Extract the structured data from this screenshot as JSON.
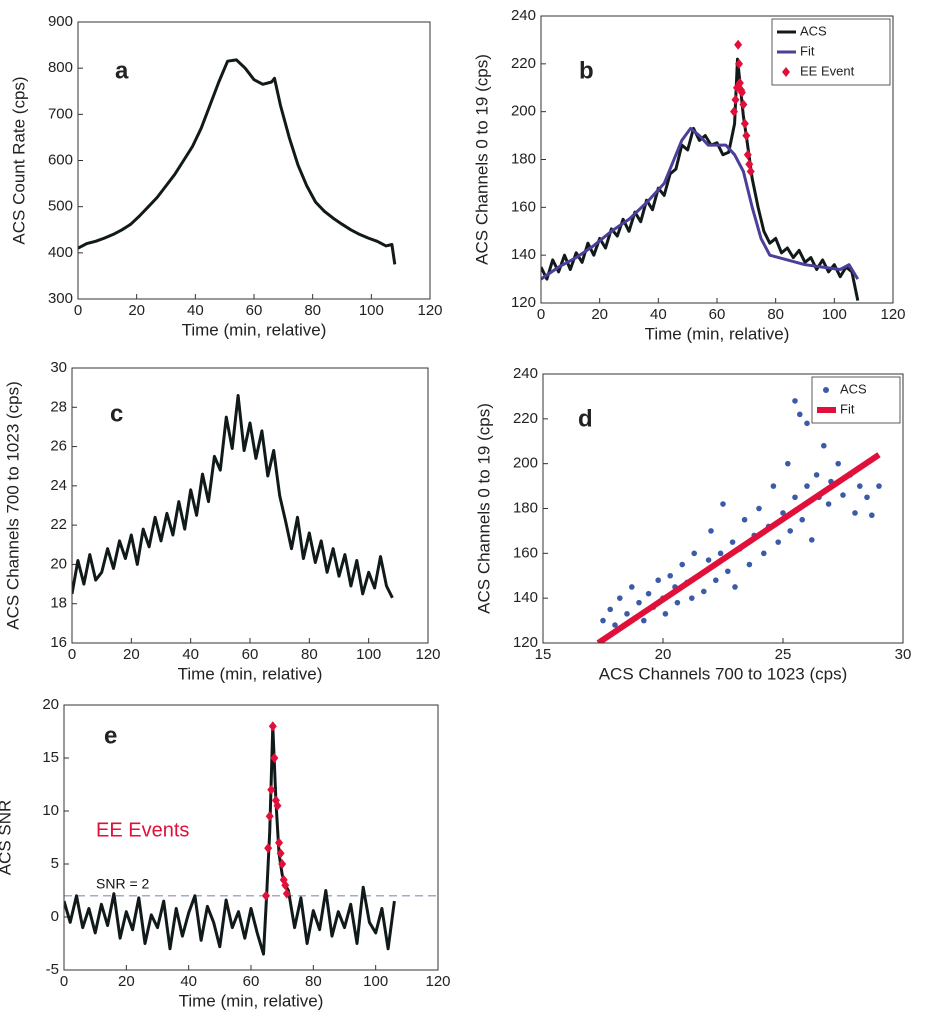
{
  "chart_data": [
    {
      "type": "line",
      "panel_label": "a",
      "xlabel": "Time (min, relative)",
      "ylabel": "ACS Count Rate (cps)",
      "xlim": [
        0,
        120
      ],
      "xticks": [
        0,
        20,
        40,
        60,
        80,
        100,
        120
      ],
      "ylim": [
        300,
        900
      ],
      "yticks": [
        300,
        400,
        500,
        600,
        700,
        800,
        900
      ],
      "series": [
        {
          "color": "#111a1a",
          "style": "line",
          "line_width": 3,
          "x": [
            0,
            3,
            6,
            9,
            12,
            15,
            18,
            21,
            24,
            27,
            30,
            33,
            36,
            39,
            42,
            45,
            48,
            51,
            54,
            57,
            60,
            63,
            66,
            67,
            69,
            72,
            75,
            78,
            81,
            84,
            87,
            90,
            93,
            96,
            99,
            102,
            105,
            107,
            108
          ],
          "values": [
            410,
            420,
            425,
            432,
            440,
            450,
            462,
            480,
            500,
            520,
            545,
            570,
            600,
            630,
            670,
            720,
            770,
            815,
            818,
            800,
            775,
            765,
            770,
            778,
            720,
            650,
            590,
            545,
            510,
            490,
            475,
            462,
            450,
            440,
            432,
            425,
            415,
            418,
            375
          ]
        }
      ]
    },
    {
      "type": "line",
      "panel_label": "b",
      "xlabel": "Time (min, relative)",
      "ylabel": "ACS Channels 0 to 19 (cps)",
      "xlim": [
        0,
        120
      ],
      "xticks": [
        0,
        20,
        40,
        60,
        80,
        100,
        120
      ],
      "ylim": [
        120,
        240
      ],
      "yticks": [
        120,
        140,
        160,
        180,
        200,
        220,
        240
      ],
      "legend": "upper right",
      "series": [
        {
          "name": "ACS",
          "color": "#111a1a",
          "style": "line",
          "line_width": 3,
          "x": [
            0,
            2,
            4,
            6,
            8,
            10,
            12,
            14,
            16,
            18,
            20,
            22,
            24,
            26,
            28,
            30,
            32,
            34,
            36,
            38,
            40,
            42,
            44,
            46,
            48,
            50,
            52,
            54,
            56,
            58,
            60,
            62,
            64,
            66,
            67,
            68,
            69,
            70,
            72,
            74,
            76,
            78,
            80,
            82,
            84,
            86,
            88,
            90,
            92,
            94,
            96,
            98,
            100,
            102,
            104,
            106,
            108
          ],
          "values": [
            135,
            130,
            138,
            133,
            140,
            134,
            141,
            137,
            145,
            140,
            147,
            143,
            151,
            148,
            155,
            150,
            158,
            154,
            163,
            159,
            168,
            165,
            174,
            176,
            186,
            184,
            193,
            188,
            190,
            186,
            187,
            182,
            183,
            195,
            222,
            210,
            198,
            190,
            172,
            160,
            150,
            145,
            147,
            141,
            143,
            139,
            142,
            137,
            139,
            134,
            138,
            133,
            136,
            131,
            135,
            133,
            121
          ]
        },
        {
          "name": "Fit",
          "color": "#4b3f9a",
          "style": "line",
          "line_width": 3,
          "x": [
            0,
            6,
            12,
            18,
            24,
            30,
            36,
            42,
            48,
            51,
            54,
            57,
            60,
            63,
            66,
            69,
            72,
            75,
            78,
            84,
            90,
            96,
            102,
            105,
            108
          ],
          "values": [
            130,
            135,
            139,
            144,
            150,
            155,
            162,
            170,
            188,
            193,
            190,
            186,
            186,
            186,
            182,
            175,
            160,
            147,
            140,
            138,
            136,
            135,
            134,
            136,
            130
          ]
        },
        {
          "name": "EE Event",
          "color": "#e0103a",
          "style": "markers",
          "marker": "diamond",
          "x": [
            65.8,
            66.3,
            66.8,
            67.2,
            67.5,
            67.8,
            68.2,
            68.5,
            69,
            69.5,
            70,
            70.5,
            71,
            71.5
          ],
          "values": [
            200,
            205,
            210,
            228,
            220,
            212,
            209,
            208,
            203,
            195,
            190,
            182,
            178,
            175
          ]
        }
      ]
    },
    {
      "type": "line",
      "panel_label": "c",
      "xlabel": "Time (min, relative)",
      "ylabel": "ACS Channels 700 to 1023 (cps)",
      "xlim": [
        0,
        120
      ],
      "xticks": [
        0,
        20,
        40,
        60,
        80,
        100,
        120
      ],
      "ylim": [
        16,
        30
      ],
      "yticks": [
        16,
        18,
        20,
        22,
        24,
        26,
        28,
        30
      ],
      "series": [
        {
          "color": "#111a1a",
          "style": "line",
          "line_width": 3,
          "x": [
            0,
            2,
            4,
            6,
            8,
            10,
            12,
            14,
            16,
            18,
            20,
            22,
            24,
            26,
            28,
            30,
            32,
            34,
            36,
            38,
            40,
            42,
            44,
            46,
            48,
            50,
            52,
            54,
            56,
            58,
            60,
            62,
            64,
            66,
            68,
            70,
            72,
            74,
            76,
            78,
            80,
            82,
            84,
            86,
            88,
            90,
            92,
            94,
            96,
            98,
            100,
            102,
            104,
            106,
            108
          ],
          "values": [
            18.5,
            20.2,
            19,
            20.5,
            19.2,
            19.6,
            20.8,
            19.8,
            21.2,
            20.3,
            21.5,
            20,
            21.8,
            20.9,
            22.4,
            21.2,
            22.6,
            21.5,
            23.2,
            21.8,
            23.8,
            22.5,
            24.6,
            23.2,
            25.5,
            24.8,
            27.5,
            25.9,
            28.6,
            25.8,
            27.2,
            25.4,
            26.8,
            24.5,
            25.8,
            23.5,
            22.2,
            20.8,
            22.4,
            20.3,
            21.6,
            20.1,
            21.2,
            19.6,
            20.8,
            19.4,
            20.5,
            18.9,
            20.2,
            18.5,
            19.6,
            18.8,
            20.4,
            18.9,
            18.3
          ]
        }
      ]
    },
    {
      "type": "scatter",
      "panel_label": "d",
      "xlabel": "ACS Channels 700 to 1023 (cps)",
      "ylabel": "ACS Channels 0 to 19 (cps)",
      "xlim": [
        15,
        30
      ],
      "xticks": [
        15,
        20,
        25,
        30
      ],
      "ylim": [
        120,
        240
      ],
      "yticks": [
        120,
        140,
        160,
        180,
        200,
        220,
        240
      ],
      "legend": "upper right",
      "series": [
        {
          "name": "ACS",
          "color": "#3b5ba9",
          "style": "markers",
          "marker": "circle",
          "x": [
            17.5,
            17.8,
            18,
            18.2,
            18.5,
            18.7,
            19,
            19.2,
            19.4,
            19.6,
            19.8,
            20,
            20.1,
            20.3,
            20.5,
            20.6,
            20.8,
            21,
            21.2,
            21.3,
            21.5,
            21.7,
            21.9,
            22,
            22.2,
            22.4,
            22.5,
            22.7,
            22.9,
            23,
            23.2,
            23.4,
            23.6,
            23.8,
            24,
            24.2,
            24.4,
            24.6,
            24.8,
            25,
            25.2,
            25.3,
            25.5,
            25.7,
            25.8,
            26,
            26.2,
            26.4,
            26.5,
            26.7,
            26.9,
            27,
            27.3,
            27.5,
            27.8,
            28,
            28.2,
            28.5,
            28.7,
            29,
            25.5,
            26
          ],
          "values": [
            130,
            135,
            128,
            140,
            133,
            145,
            138,
            130,
            142,
            136,
            148,
            140,
            133,
            150,
            145,
            138,
            155,
            147,
            140,
            160,
            150,
            143,
            157,
            170,
            148,
            160,
            182,
            152,
            165,
            145,
            162,
            175,
            155,
            168,
            180,
            160,
            172,
            190,
            165,
            178,
            200,
            170,
            185,
            222,
            175,
            190,
            166,
            195,
            185,
            208,
            182,
            192,
            200,
            186,
            195,
            178,
            190,
            185,
            177,
            190,
            228,
            218
          ]
        },
        {
          "name": "Fit",
          "color": "#e0103a",
          "style": "line",
          "line_width": 6,
          "x": [
            17.3,
            29
          ],
          "values": [
            120,
            204
          ]
        }
      ]
    },
    {
      "type": "line",
      "panel_label": "e",
      "xlabel": "Time (min, relative)",
      "ylabel": "ACS SNR",
      "xlim": [
        0,
        120
      ],
      "xticks": [
        0,
        20,
        40,
        60,
        80,
        100,
        120
      ],
      "ylim": [
        -5,
        20
      ],
      "yticks": [
        -5,
        0,
        5,
        10,
        15,
        20
      ],
      "hline": 2,
      "annotations": [
        {
          "text": "EE Events",
          "color": "#e0103a"
        },
        {
          "text": "SNR = 2",
          "color": "#111111"
        }
      ],
      "series": [
        {
          "color": "#111a1a",
          "style": "line",
          "line_width": 3,
          "x": [
            0,
            2,
            4,
            6,
            8,
            10,
            12,
            14,
            16,
            18,
            20,
            22,
            24,
            26,
            28,
            30,
            32,
            34,
            36,
            38,
            40,
            42,
            44,
            46,
            48,
            50,
            52,
            54,
            56,
            58,
            60,
            62,
            64,
            65,
            66,
            67,
            68,
            69,
            70,
            71,
            72,
            74,
            76,
            78,
            80,
            82,
            84,
            86,
            88,
            90,
            92,
            94,
            96,
            98,
            100,
            102,
            104,
            106
          ],
          "values": [
            1.5,
            -0.5,
            2,
            -1,
            0.8,
            -1.5,
            1.2,
            -0.8,
            2.2,
            -2,
            0.5,
            -1.2,
            1.8,
            -2.5,
            0.2,
            -1,
            1.5,
            -3,
            0.8,
            -1.8,
            0.4,
            2,
            -2.2,
            1,
            -0.5,
            -2.8,
            1.6,
            -1,
            0.5,
            -2,
            0.8,
            -1.5,
            -3.5,
            2,
            8,
            18,
            11,
            6,
            4,
            3,
            2.5,
            -1,
            1.8,
            -2.5,
            0.6,
            -1.2,
            2.5,
            -1.8,
            0.5,
            -1,
            1.2,
            -2.5,
            2.8,
            -0.5,
            -1.5,
            0.8,
            -3,
            1.5
          ]
        },
        {
          "color": "#e0103a",
          "style": "markers",
          "marker": "diamond",
          "x": [
            64.8,
            65.5,
            66,
            66.5,
            67,
            67.5,
            68,
            68.5,
            69,
            69.5,
            70,
            70.5,
            71,
            71.5
          ],
          "values": [
            2,
            6.5,
            9.5,
            12,
            18,
            15,
            11,
            10.5,
            7,
            6,
            5,
            3.5,
            3,
            2.2
          ]
        }
      ]
    }
  ]
}
